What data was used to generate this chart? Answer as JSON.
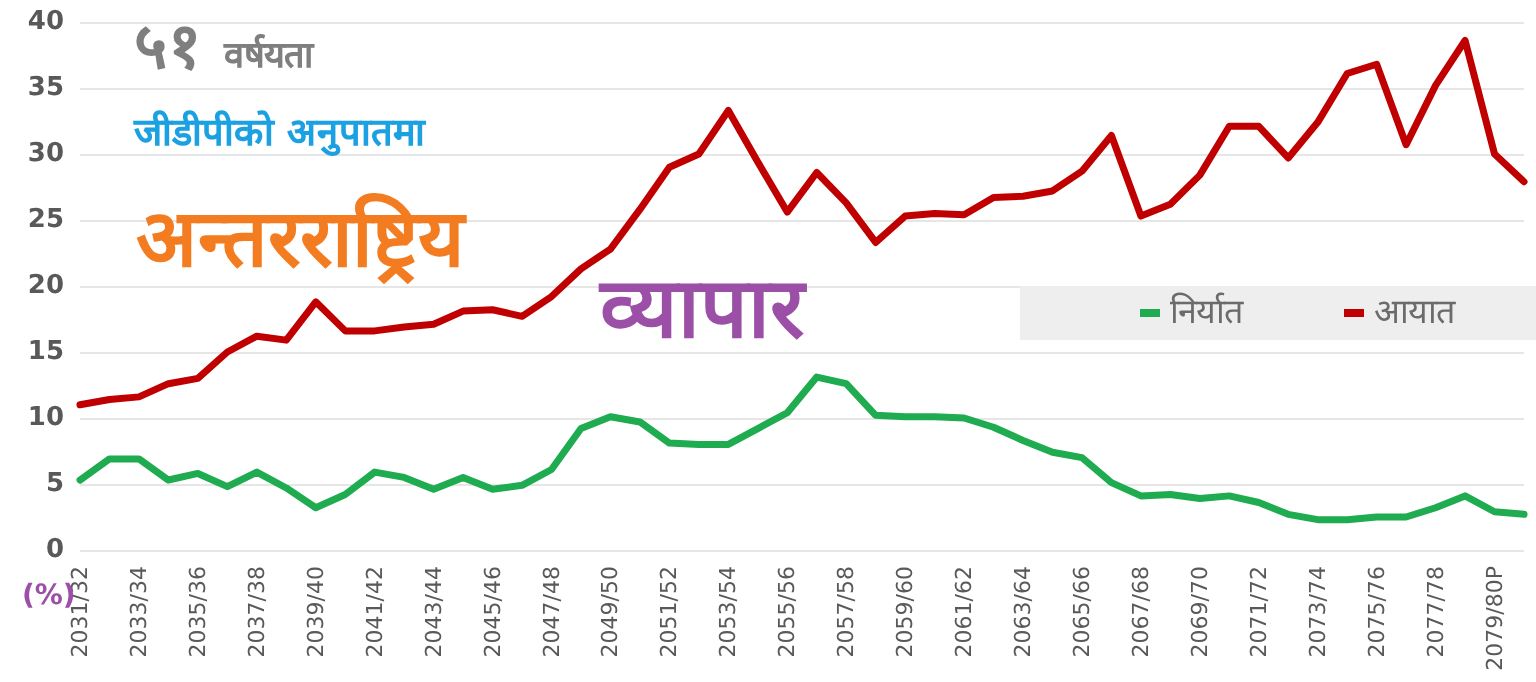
{
  "chart_data": {
    "type": "line",
    "title": "५१ वर्षयता",
    "subtitle": "जीडीपीको अनुपातमा",
    "annotations": [
      "अन्तरराष्ट्रिय",
      "व्यापार"
    ],
    "ylabel": "(%)",
    "categories": [
      "2031/32",
      null,
      "2033/34",
      null,
      "2035/36",
      null,
      "2037/38",
      null,
      "2039/40",
      null,
      "2041/42",
      null,
      "2043/44",
      null,
      "2045/46",
      null,
      "2047/48",
      null,
      "2049/50",
      null,
      "2051/52",
      null,
      "2053/54",
      null,
      "2055/56",
      null,
      "2057/58",
      null,
      "2059/60",
      null,
      "2061/62",
      null,
      "2063/64",
      null,
      "2065/66",
      null,
      "2067/68",
      null,
      "2069/70",
      null,
      "2071/72",
      null,
      "2073/74",
      null,
      "2075/76",
      null,
      "2077/78",
      null,
      "2079/80P",
      null
    ],
    "series": [
      {
        "name": "निर्यात",
        "color": "#1fab4f",
        "values": [
          5.3,
          6.9,
          6.9,
          5.3,
          5.8,
          4.8,
          5.9,
          4.7,
          3.2,
          4.2,
          5.9,
          5.5,
          4.6,
          5.5,
          4.6,
          4.9,
          6.1,
          9.2,
          10.1,
          9.7,
          8.1,
          8.0,
          8.0,
          9.2,
          10.4,
          13.1,
          12.6,
          10.2,
          10.1,
          10.1,
          10.0,
          9.3,
          8.3,
          7.4,
          7.0,
          5.1,
          4.1,
          4.2,
          3.9,
          4.1,
          3.6,
          2.7,
          2.3,
          2.3,
          2.5,
          2.5,
          3.2,
          4.1,
          2.9,
          2.7
        ]
      },
      {
        "name": "आयात",
        "color": "#c00000",
        "values": [
          11.0,
          11.4,
          11.6,
          12.6,
          13.0,
          15.0,
          16.2,
          15.9,
          18.8,
          16.6,
          16.6,
          16.9,
          17.1,
          18.1,
          18.2,
          17.7,
          19.2,
          21.3,
          22.8,
          25.8,
          29.0,
          30.0,
          33.3,
          29.4,
          25.6,
          28.6,
          26.3,
          23.3,
          25.3,
          25.5,
          25.4,
          26.7,
          26.8,
          27.2,
          28.7,
          31.4,
          25.3,
          26.2,
          28.4,
          32.1,
          32.1,
          29.7,
          32.4,
          36.1,
          36.8,
          30.7,
          35.2,
          38.6,
          30.0,
          27.9
        ]
      }
    ],
    "ylim": [
      0,
      40
    ],
    "yticks": [
      0,
      5,
      10,
      15,
      20,
      25,
      30,
      35,
      40
    ],
    "grid": "y",
    "legend": "right",
    "marker": "none",
    "line_style": "solid"
  }
}
